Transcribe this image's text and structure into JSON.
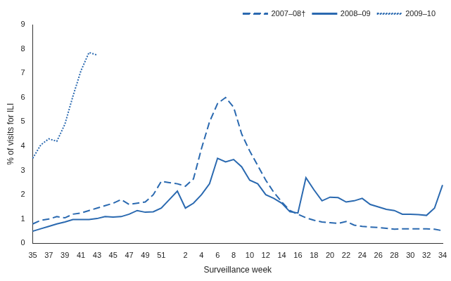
{
  "chart_data": {
    "type": "line",
    "x_label": "Surveillance week",
    "y_label": "% of visits for ILI",
    "categories": [
      35,
      null,
      37,
      null,
      39,
      null,
      41,
      null,
      43,
      null,
      45,
      null,
      47,
      null,
      49,
      null,
      51,
      null,
      null,
      2,
      null,
      4,
      null,
      6,
      null,
      8,
      null,
      10,
      null,
      12,
      null,
      14,
      null,
      16,
      null,
      18,
      null,
      20,
      null,
      22,
      null,
      24,
      null,
      26,
      null,
      28,
      null,
      30,
      null,
      32,
      null,
      34
    ],
    "series": [
      {
        "name": "2007–08†",
        "color": "#2a69b0",
        "line_style": "dashed",
        "values": [
          0.8,
          0.95,
          1.0,
          1.1,
          1.05,
          1.2,
          1.25,
          1.35,
          1.45,
          1.55,
          1.65,
          1.8,
          1.6,
          1.65,
          1.7,
          2.0,
          2.55,
          2.5,
          2.45,
          2.35,
          2.65,
          3.9,
          5.0,
          5.75,
          6.0,
          5.6,
          4.5,
          3.8,
          3.2,
          2.6,
          2.1,
          1.7,
          1.35,
          1.2,
          1.05,
          0.95,
          0.88,
          0.85,
          0.82,
          0.9,
          0.75,
          0.7,
          0.67,
          0.65,
          0.62,
          0.58,
          0.6,
          0.6,
          0.6,
          0.6,
          0.58,
          0.52
        ]
      },
      {
        "name": "2008–09",
        "color": "#2a69b0",
        "line_style": "solid",
        "values": [
          0.5,
          0.6,
          0.7,
          0.8,
          0.88,
          0.98,
          0.98,
          0.98,
          1.02,
          1.1,
          1.08,
          1.1,
          1.2,
          1.35,
          1.28,
          1.3,
          1.45,
          1.8,
          2.15,
          1.45,
          1.65,
          2.0,
          2.45,
          3.5,
          3.35,
          3.45,
          3.15,
          2.6,
          2.45,
          2.0,
          1.85,
          1.65,
          1.3,
          1.25,
          2.7,
          2.2,
          1.75,
          1.9,
          1.88,
          1.7,
          1.75,
          1.85,
          1.6,
          1.5,
          1.4,
          1.35,
          1.2,
          1.2,
          1.18,
          1.15,
          1.45,
          2.4
        ]
      },
      {
        "name": "2009–10",
        "color": "#2a69b0",
        "line_style": "dotted",
        "values": [
          3.5,
          4.05,
          4.3,
          4.2,
          4.9,
          6.05,
          7.1,
          7.85,
          7.75,
          null,
          null,
          null,
          null,
          null,
          null,
          null,
          null,
          null,
          null,
          null,
          null,
          null,
          null,
          null,
          null,
          null,
          null,
          null,
          null,
          null,
          null,
          null,
          null,
          null,
          null,
          null,
          null,
          null,
          null,
          null,
          null,
          null,
          null,
          null,
          null,
          null,
          null,
          null,
          null,
          null,
          null,
          null
        ]
      }
    ],
    "ylim": [
      0,
      9
    ],
    "yticks": [
      0,
      1,
      2,
      3,
      4,
      5,
      6,
      7,
      8,
      9
    ],
    "grid": false,
    "legend": "upper right"
  }
}
